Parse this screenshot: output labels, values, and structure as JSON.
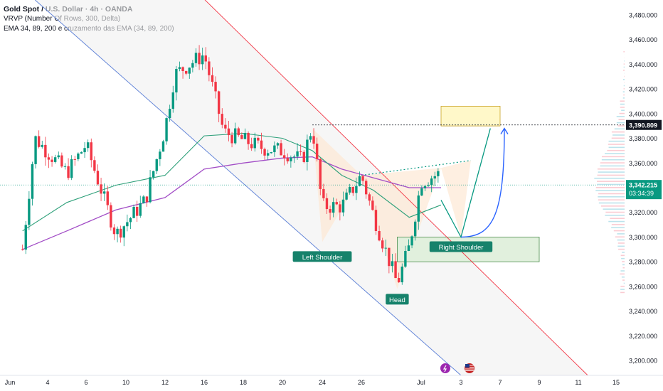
{
  "legend": {
    "title": "Gold Spot / U.S. Dollar · 4h · OANDA",
    "vrvp": "VRVP (Number Of Rows, 300, Delta)",
    "ema": "EMA 34, 89, 200 e cruzamento das EMA (34, 89, 200)"
  },
  "colors": {
    "up": "#089981",
    "down": "#f23645",
    "ema_fast": "#2ea07a",
    "ema_slow": "#a24dc6",
    "channel_upper": "#f23645",
    "channel_lower": "#5b7fd6",
    "zone_yellow_fill": "#fff8c9",
    "zone_green_fill": "#e1f0dd",
    "label_green": "#16826b",
    "arrow_blue": "#2962ff"
  },
  "price_labels": {
    "target": "3,390.809",
    "current": "3,342.215",
    "countdown": "03:34:39"
  },
  "pattern_labels": {
    "left_shoulder": "Left Shoulder",
    "head": "Head",
    "right_shoulder": "Right Shoulder"
  },
  "chart_data": {
    "type": "candlestick",
    "symbol": "Gold Spot / U.S. Dollar",
    "interval": "4h",
    "y_ticks": [
      3200,
      3220,
      3240,
      3260,
      3280,
      3300,
      3320,
      3340,
      3360,
      3380,
      3400,
      3420,
      3440,
      3460,
      3480
    ],
    "y_tick_labels": [
      "3,200.000",
      "3,220.000",
      "3,240.000",
      "3,260.000",
      "3,280.000",
      "3,300.000",
      "3,320.000",
      "3,340.000",
      "3,360.000",
      "3,380.000",
      "3,400.000",
      "3,420.000",
      "3,440.000",
      "3,460.000",
      "3,480.000"
    ],
    "ylim": [
      3188,
      3492
    ],
    "x_ticks": [
      "Jun",
      "4",
      "6",
      "10",
      "12",
      "16",
      "18",
      "20",
      "24",
      "26",
      "Jul",
      "3",
      "7",
      "9",
      "11",
      "15"
    ],
    "x_tick_positions": [
      "2025-06-01",
      "2025-06-04",
      "2025-06-06",
      "2025-06-10",
      "2025-06-12",
      "2025-06-16",
      "2025-06-18",
      "2025-06-20",
      "2025-06-24",
      "2025-06-26",
      "2025-07-01",
      "2025-07-03",
      "2025-07-07",
      "2025-07-09",
      "2025-07-11",
      "2025-07-15"
    ],
    "target_price": 3390.809,
    "current_price": 3342.215,
    "pivots": [
      {
        "t": "2025-06-02",
        "p": 3290
      },
      {
        "t": "2025-06-03",
        "p": 3380
      },
      {
        "t": "2025-06-05",
        "p": 3352
      },
      {
        "t": "2025-06-06",
        "p": 3375
      },
      {
        "t": "2025-06-09",
        "p": 3302
      },
      {
        "t": "2025-06-11",
        "p": 3330
      },
      {
        "t": "2025-06-12",
        "p": 3388
      },
      {
        "t": "2025-06-13",
        "p": 3432
      },
      {
        "t": "2025-06-16",
        "p": 3448
      },
      {
        "t": "2025-06-17",
        "p": 3385
      },
      {
        "t": "2025-06-19",
        "p": 3372
      },
      {
        "t": "2025-06-20",
        "p": 3370
      },
      {
        "t": "2025-06-22",
        "p": 3362
      },
      {
        "t": "2025-06-23",
        "p": 3390
      },
      {
        "t": "2025-06-24",
        "p": 3325
      },
      {
        "t": "2025-06-25",
        "p": 3325
      },
      {
        "t": "2025-06-26",
        "p": 3350
      },
      {
        "t": "2025-06-27",
        "p": 3318
      },
      {
        "t": "2025-06-29",
        "p": 3262
      },
      {
        "t": "2025-06-30",
        "p": 3292
      },
      {
        "t": "2025-07-01",
        "p": 3345
      },
      {
        "t": "2025-07-02",
        "p": 3352
      },
      {
        "t": "2025-07-02",
        "p": 3342
      }
    ],
    "ema_fast": [
      {
        "t": "2025-06-02",
        "p": 3305
      },
      {
        "t": "2025-06-05",
        "p": 3328
      },
      {
        "t": "2025-06-09",
        "p": 3342
      },
      {
        "t": "2025-06-12",
        "p": 3350
      },
      {
        "t": "2025-06-16",
        "p": 3382
      },
      {
        "t": "2025-06-18",
        "p": 3384
      },
      {
        "t": "2025-06-20",
        "p": 3380
      },
      {
        "t": "2025-06-23",
        "p": 3370
      },
      {
        "t": "2025-06-25",
        "p": 3350
      },
      {
        "t": "2025-06-27",
        "p": 3338
      },
      {
        "t": "2025-06-30",
        "p": 3316
      },
      {
        "t": "2025-07-02",
        "p": 3326
      }
    ],
    "ema_slow": [
      {
        "t": "2025-06-02",
        "p": 3290
      },
      {
        "t": "2025-06-05",
        "p": 3305
      },
      {
        "t": "2025-06-09",
        "p": 3322
      },
      {
        "t": "2025-06-12",
        "p": 3332
      },
      {
        "t": "2025-06-16",
        "p": 3355
      },
      {
        "t": "2025-06-18",
        "p": 3360
      },
      {
        "t": "2025-06-20",
        "p": 3364
      },
      {
        "t": "2025-06-23",
        "p": 3365
      },
      {
        "t": "2025-06-25",
        "p": 3355
      },
      {
        "t": "2025-06-27",
        "p": 3348
      },
      {
        "t": "2025-06-30",
        "p": 3340
      },
      {
        "t": "2025-07-02",
        "p": 3340
      }
    ],
    "channel_upper": [
      {
        "t": "2025-06-13",
        "p": 3516
      },
      {
        "t": "2025-07-12",
        "p": 3188
      }
    ],
    "channel_lower": [
      {
        "t": "2025-06-03",
        "p": 3492
      },
      {
        "t": "2025-07-03",
        "p": 3188
      }
    ],
    "neckline": [
      {
        "t": "2025-06-26",
        "p": 3350
      },
      {
        "t": "2025-07-04",
        "p": 3362
      }
    ],
    "left_shoulder": {
      "t": "2025-06-24",
      "p": 3296
    },
    "head": {
      "t": "2025-06-29",
      "p": 3258
    },
    "right_shoulder": {
      "t": "2025-07-03",
      "p": 3300
    },
    "projection_path": [
      {
        "t": "2025-07-02",
        "p": 3352
      },
      {
        "t": "2025-07-03",
        "p": 3300
      },
      {
        "t": "2025-07-06",
        "p": 3390
      }
    ],
    "zones": [
      {
        "name": "target",
        "t1": "2025-07-02",
        "t2": "2025-07-07",
        "p1": 3390,
        "p2": 3406
      },
      {
        "name": "demand",
        "t1": "2025-06-29",
        "t2": "2025-07-09",
        "p1": 3280,
        "p2": 3300
      }
    ],
    "grid": false,
    "legend_position": "top-left"
  }
}
